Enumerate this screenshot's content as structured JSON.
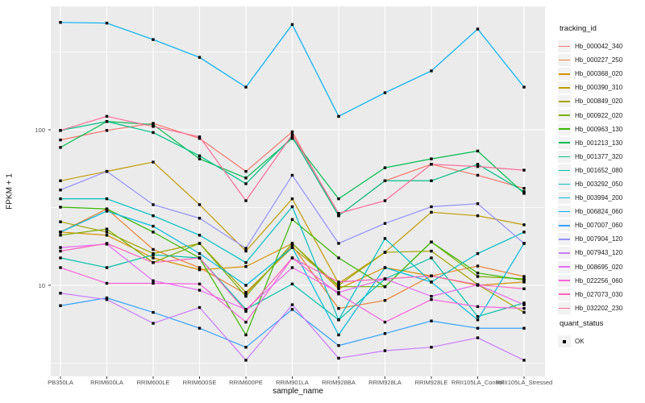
{
  "chart_data": {
    "type": "line",
    "xlabel": "sample_name",
    "ylabel": "FPKM + 1",
    "y_scale": "log10",
    "y_ticks": [
      100,
      10
    ],
    "y_minor_gridlines": [
      316,
      31.6,
      3.16
    ],
    "panel_background": "#EBEBEB",
    "gridline_color": "#FFFFFF",
    "point_marker": {
      "shape": "square",
      "color": "#000000"
    },
    "categories": [
      "PB350LA",
      "RRIM600LA",
      "RRIM600LE",
      "RRIM600SE",
      "RRIM600PE",
      "RRIM901LA",
      "RRIM928BA",
      "RRIM928LA",
      "RRIM928LE",
      "RRII105LA_Control",
      "RRII105LA_Stressed"
    ],
    "series": [
      {
        "name": "Hb_000042_340",
        "color": "#F8766D",
        "values": [
          86,
          99,
          110,
          88,
          54,
          97,
          28,
          47,
          60,
          51,
          42
        ]
      },
      {
        "name": "Hb_000227_250",
        "color": "#EA8331",
        "values": [
          22,
          31,
          17,
          13,
          8.8,
          18,
          7.1,
          8,
          11.5,
          13.3,
          11.4
        ]
      },
      {
        "name": "Hb_000368_020",
        "color": "#D89000",
        "values": [
          22,
          21,
          15,
          12.6,
          13.2,
          18.6,
          9.5,
          13,
          11.5,
          10,
          10.5
        ]
      },
      {
        "name": "Hb_000390_310",
        "color": "#C09B00",
        "values": [
          47,
          54,
          62,
          33,
          16.6,
          36,
          10.3,
          16.3,
          29.5,
          28,
          24.5
        ]
      },
      {
        "name": "Hb_000849_020",
        "color": "#A3A500",
        "values": [
          25.6,
          22,
          16,
          18.6,
          9,
          17.5,
          10,
          16.3,
          16.6,
          10.1,
          6.7
        ]
      },
      {
        "name": "Hb_000922_020",
        "color": "#7CAE00",
        "values": [
          21,
          23,
          14,
          18.6,
          8.5,
          18.6,
          9.8,
          9.8,
          19,
          11.4,
          11
        ]
      },
      {
        "name": "Hb_000963_130",
        "color": "#39B600",
        "values": [
          31.8,
          31,
          22,
          15,
          4.8,
          26.5,
          15,
          9.8,
          19,
          12,
          10.8
        ]
      },
      {
        "name": "Hb_001213_130",
        "color": "#00BC51",
        "values": [
          77,
          113,
          108,
          65,
          49,
          88,
          36,
          57,
          65,
          73,
          39
        ]
      },
      {
        "name": "Hb_001377_320",
        "color": "#00C087",
        "values": [
          99,
          113,
          96,
          68,
          45,
          90,
          28,
          47,
          47,
          60,
          40
        ]
      },
      {
        "name": "Hb_001652_080",
        "color": "#00C1A7",
        "values": [
          15,
          13,
          15.7,
          15,
          7,
          10.2,
          6,
          11,
          15,
          6.3,
          7.7
        ]
      },
      {
        "name": "Hb_003292_050",
        "color": "#00BFC4",
        "values": [
          36,
          36,
          28,
          21,
          14,
          32,
          6,
          20,
          10.5,
          16,
          22
        ]
      },
      {
        "name": "Hb_003994_200",
        "color": "#00BAE0",
        "values": [
          22,
          30,
          24,
          16,
          10,
          17.5,
          4.8,
          13,
          10.5,
          6,
          18.6
        ]
      },
      {
        "name": "Hb_006824_060",
        "color": "#00B0F6",
        "values": [
          490,
          485,
          380,
          292,
          188,
          475,
          122,
          173,
          239,
          444,
          188
        ]
      },
      {
        "name": "Hb_007007_060",
        "color": "#35A2FF",
        "values": [
          7.4,
          8.3,
          6.7,
          5.3,
          4.0,
          7.0,
          4.1,
          4.9,
          5.9,
          5.3,
          5.3
        ]
      },
      {
        "name": "Hb_007904_120",
        "color": "#9590FF",
        "values": [
          41,
          54,
          33,
          27,
          17.3,
          51,
          18.6,
          25,
          32,
          33.5,
          18.6
        ]
      },
      {
        "name": "Hb_007943_120",
        "color": "#C77CFF",
        "values": [
          8.9,
          8.1,
          5.7,
          7.2,
          3.3,
          7.5,
          3.4,
          3.8,
          4.0,
          4.6,
          3.3
        ]
      },
      {
        "name": "Hb_008695_020",
        "color": "#E76BF3",
        "values": [
          17.5,
          18.4,
          10.7,
          9.3,
          7.0,
          13,
          9,
          11,
          8.5,
          10.1,
          7.5
        ]
      },
      {
        "name": "Hb_022256_060",
        "color": "#FA62DB",
        "values": [
          13,
          10.3,
          10.3,
          10.2,
          5.8,
          15,
          8.8,
          5.8,
          8.1,
          7.3,
          7.1
        ]
      },
      {
        "name": "Hb_027073_030",
        "color": "#FF62BC",
        "values": [
          16.6,
          18.6,
          14,
          15,
          6.8,
          15,
          10.5,
          11,
          11.5,
          10.1,
          9.5
        ]
      },
      {
        "name": "Hb_032202_230",
        "color": "#FF6A98",
        "values": [
          99,
          122,
          105,
          90,
          35,
          93,
          29,
          35,
          60,
          58,
          55
        ]
      }
    ]
  },
  "legend": {
    "tracking_title": "tracking_id",
    "quant_title": "quant_status",
    "quant_items": [
      {
        "label": "OK"
      }
    ]
  }
}
